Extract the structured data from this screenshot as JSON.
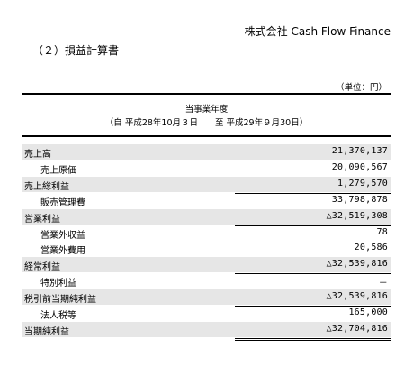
{
  "header": {
    "company": "株式会社 Cash Flow Finance",
    "section_title": "（２）損益計算書",
    "unit": "（単位：円）"
  },
  "period": {
    "title": "当事業年度",
    "range": "（自 平成28年10月３日　　至 平成29年９月30日）"
  },
  "rows": [
    {
      "label": "売上高",
      "value": "21,370,137",
      "indent": false,
      "shaded": true
    },
    {
      "label": "売上原価",
      "value": "20,090,567",
      "indent": true,
      "shaded": false
    },
    {
      "label": "売上総利益",
      "value": "1,279,570",
      "indent": false,
      "shaded": true
    },
    {
      "label": "販売管理費",
      "value": "33,798,878",
      "indent": true,
      "shaded": false
    },
    {
      "label": "営業利益",
      "value": "△32,519,308",
      "indent": false,
      "shaded": true
    },
    {
      "label": "営業外収益",
      "value": "78",
      "indent": true,
      "shaded": false
    },
    {
      "label": "営業外費用",
      "value": "20,586",
      "indent": true,
      "shaded": false
    },
    {
      "label": "経常利益",
      "value": "△32,539,816",
      "indent": false,
      "shaded": true
    },
    {
      "label": "特別利益",
      "value": "－",
      "indent": true,
      "shaded": false
    },
    {
      "label": "税引前当期純利益",
      "value": "△32,539,816",
      "indent": false,
      "shaded": true
    },
    {
      "label": "法人税等",
      "value": "165,000",
      "indent": true,
      "shaded": false
    },
    {
      "label": "当期純利益",
      "value": "△32,704,816",
      "indent": false,
      "shaded": true
    }
  ]
}
